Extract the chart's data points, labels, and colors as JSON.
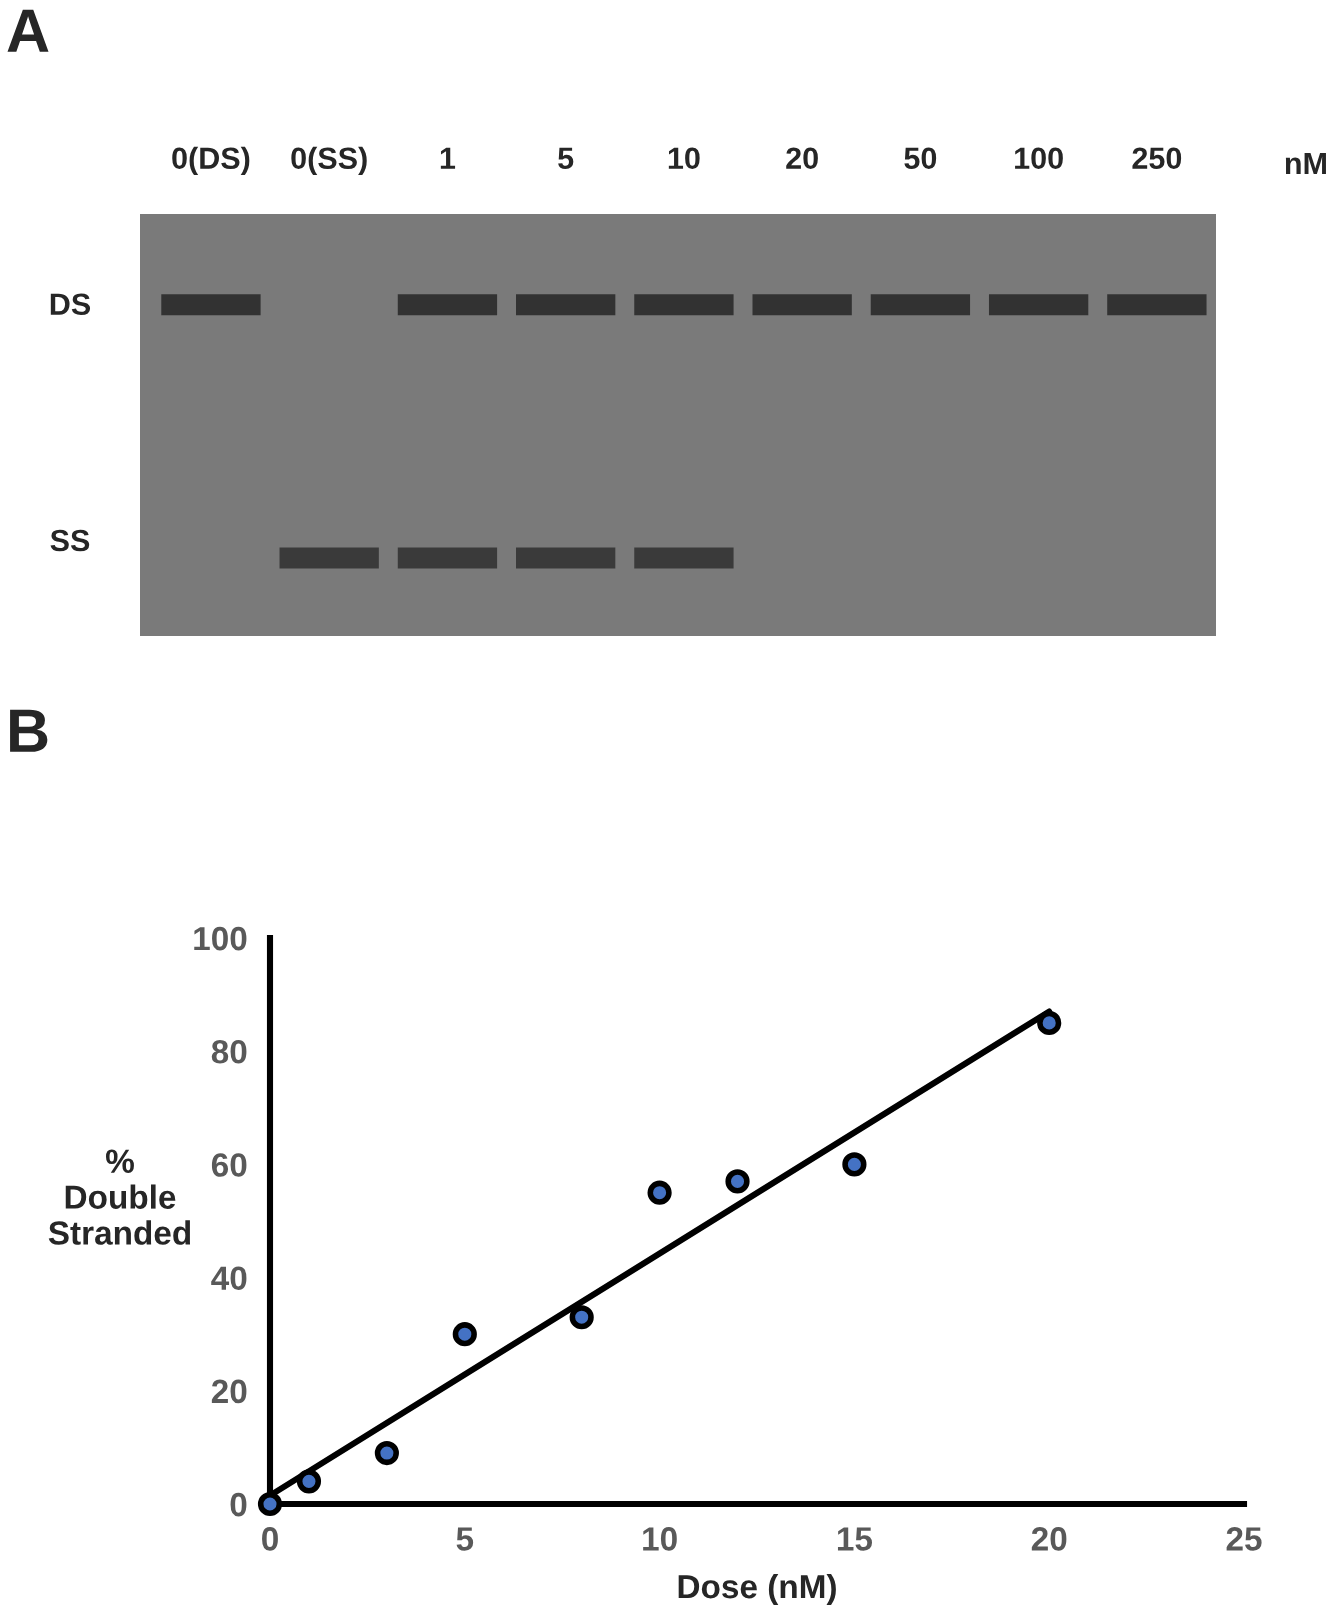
{
  "chart_data": [
    {
      "type": "other",
      "title": "A",
      "categories": [
        "0(DS)",
        "0(SS)",
        "1",
        "5",
        "10",
        "20",
        "50",
        "100",
        "250"
      ],
      "xlabel": "nM",
      "annotations": [
        "DS",
        "SS"
      ]
    },
    {
      "type": "scatter",
      "title": "B",
      "xlabel": "Dose (nM)",
      "ylabel": "%\nDouble\nStranded",
      "xlim": [
        0,
        25
      ],
      "xticks": [
        0,
        5,
        10,
        15,
        20,
        25
      ],
      "ylim": [
        0,
        100
      ],
      "yticks": [
        0,
        20,
        40,
        60,
        80,
        100
      ],
      "grid": false,
      "series": [
        {
          "type": "scatter",
          "marker": "circle",
          "color": "#4472c4",
          "x": [
            0,
            1,
            3,
            5,
            8,
            10,
            12,
            15,
            20
          ],
          "values": [
            0,
            4,
            9,
            30,
            33,
            55,
            57,
            60,
            85
          ]
        },
        {
          "type": "line",
          "color": "#000000",
          "x": [
            0,
            20
          ],
          "values": [
            1.5,
            87
          ],
          "line_style": "solid"
        }
      ]
    }
  ]
}
